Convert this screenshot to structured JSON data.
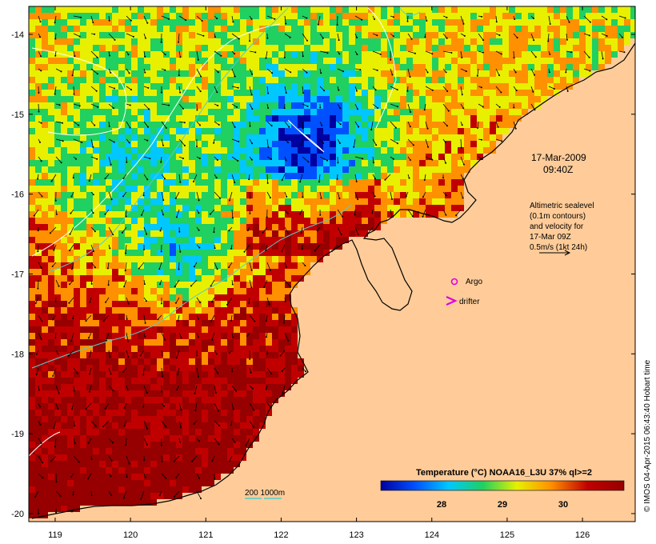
{
  "date_label": {
    "line1": "17-Mar-2009",
    "line2": "09:40Z"
  },
  "altimetry_note": {
    "lines": [
      "Altimetric sealevel",
      "(0.1m contours)",
      "and velocity for",
      "17-Mar 09Z",
      "0.5m/s (1kt 24h)"
    ]
  },
  "legend": {
    "argo": "Argo",
    "drifter": "drifter"
  },
  "bathy_label": "200  1000m",
  "colorbar": {
    "title": "Temperature (°C) NOAA16_L3U 37% ql>=2",
    "ticks": [
      "28",
      "29",
      "30"
    ],
    "range": [
      27.0,
      31.0
    ],
    "stops": [
      "#0000a0",
      "#0050ff",
      "#00c8ff",
      "#20d060",
      "#e8f000",
      "#ff9000",
      "#c00000",
      "#960000"
    ]
  },
  "credit": "© IMOS 04-Apr-2015 06:43:40 Hobart time",
  "axes": {
    "lon_ticks": [
      "119",
      "120",
      "121",
      "122",
      "123",
      "124",
      "125",
      "126"
    ],
    "lat_ticks": [
      "-14",
      "-15",
      "-16",
      "-17",
      "-18",
      "-19",
      "-20"
    ],
    "lon_range": [
      118.65,
      126.7
    ],
    "lat_range": [
      -20.1,
      -13.65
    ]
  },
  "colors": {
    "land": "#ffcc99",
    "coastline": "#000000",
    "contour": "#ffffff",
    "bathy_200": "#55cccc",
    "argo": "#e000e0",
    "drifter": "#e000e0"
  }
}
